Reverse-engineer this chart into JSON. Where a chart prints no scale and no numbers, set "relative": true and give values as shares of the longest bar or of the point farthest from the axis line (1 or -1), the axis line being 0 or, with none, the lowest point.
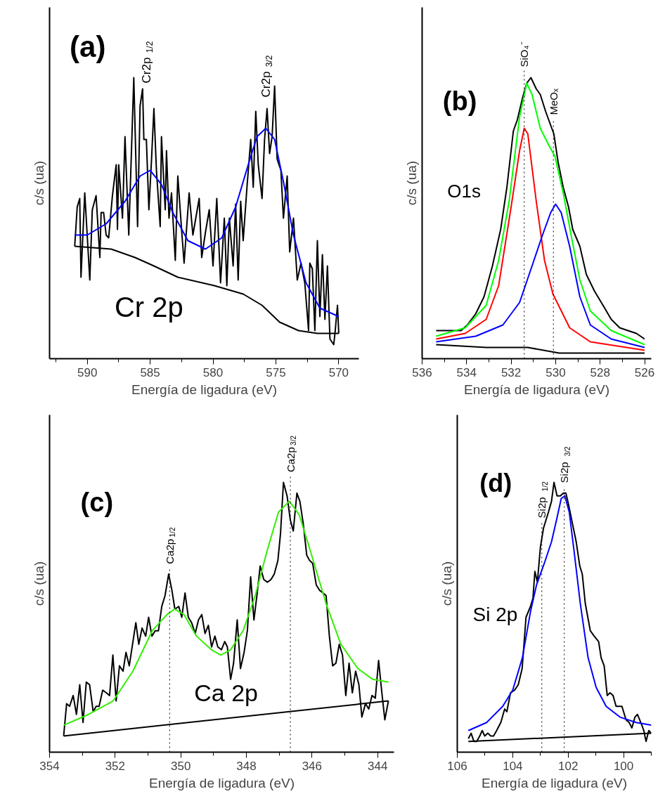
{
  "chart_data": [
    {
      "type": "line",
      "xlabel": "Energía de ligadura (eV)",
      "ylabel": "c/s (ua)",
      "relative": true,
      "tick_labels": "x",
      "xlim": [
        593.0,
        568.4
      ],
      "xticks": [
        590,
        585,
        580,
        575,
        570,
        {
          "value": 592.5,
          "label": null
        },
        {
          "value": 587.5,
          "label": null
        },
        {
          "value": 582.5,
          "label": null
        },
        {
          "value": 577.5,
          "label": null
        },
        {
          "value": 572.5,
          "label": null
        }
      ],
      "annotations": [
        "(a)",
        "Cr 2p",
        "Cr2p$_{1/2}$",
        "Cr2p$_{3/2}$"
      ],
      "series": [
        {
          "color": "#000000",
          "x": [
            591.0,
            590.8,
            590.6,
            590.5,
            590.2,
            589.8,
            589.6,
            589.3,
            589.0,
            588.9,
            588.7,
            588.5,
            588.3,
            588.0,
            587.7,
            587.6,
            587.5,
            587.2,
            587.0,
            586.7,
            586.5,
            586.3,
            586.0,
            585.8,
            585.6,
            585.5,
            585.3,
            585.1,
            584.9,
            584.7,
            584.5,
            584.2,
            584.1,
            583.8,
            583.7,
            583.5,
            583.3,
            583.0,
            582.8,
            582.5,
            582.3,
            581.9,
            581.6,
            581.1,
            580.9,
            580.6,
            580.3,
            580.0,
            579.7,
            579.4,
            579.1,
            578.9,
            578.7,
            578.4,
            578.2,
            578.0,
            577.8,
            577.6,
            577.3,
            577.0,
            576.8,
            576.6,
            576.4,
            576.1,
            575.9,
            575.7,
            575.5,
            575.3,
            575.1,
            574.9,
            574.6,
            574.4,
            574.1,
            573.9,
            573.6,
            573.3,
            573.0,
            572.7,
            572.4,
            572.3,
            572.1,
            571.9,
            571.7,
            571.5,
            571.3,
            571.1,
            570.9,
            570.7,
            570.4,
            570.3,
            570.1,
            570.0
          ],
          "values": [
            0.4,
            0.54,
            0.57,
            0.29,
            0.59,
            0.28,
            0.53,
            0.58,
            0.36,
            0.52,
            0.52,
            0.44,
            0.43,
            0.58,
            0.69,
            0.46,
            0.69,
            0.5,
            0.79,
            0.44,
            0.72,
            1.0,
            0.47,
            0.9,
            0.96,
            0.78,
            0.78,
            0.53,
            0.7,
            0.89,
            0.67,
            0.47,
            0.79,
            0.53,
            0.74,
            0.5,
            0.59,
            0.35,
            0.65,
            0.46,
            0.34,
            0.59,
            0.44,
            0.57,
            0.36,
            0.45,
            0.53,
            0.33,
            0.57,
            0.27,
            0.5,
            0.26,
            0.5,
            0.33,
            0.55,
            0.28,
            0.56,
            0.42,
            0.61,
            0.78,
            0.61,
            0.88,
            0.69,
            0.57,
            0.78,
            0.89,
            0.73,
            0.79,
            0.97,
            0.71,
            0.67,
            0.5,
            0.65,
            0.38,
            0.5,
            0.28,
            0.34,
            0.27,
            0.1,
            0.34,
            0.32,
            0.1,
            0.42,
            0.15,
            0.37,
            0.14,
            0.33,
            0.07,
            0.05,
            0.09,
            0.19,
            0.09
          ]
        },
        {
          "color": "#0000ff",
          "x": [
            591.0,
            590.0,
            588.5,
            587.0,
            585.8,
            585.0,
            584.1,
            583.2,
            582.0,
            580.6,
            579.3,
            578.2,
            577.2,
            576.5,
            575.8,
            575.1,
            574.4,
            573.6,
            572.6,
            571.5,
            570.0
          ],
          "values": [
            0.44,
            0.44,
            0.48,
            0.56,
            0.65,
            0.67,
            0.62,
            0.52,
            0.42,
            0.39,
            0.43,
            0.54,
            0.69,
            0.79,
            0.82,
            0.78,
            0.63,
            0.44,
            0.27,
            0.18,
            0.15
          ]
        },
        {
          "color": "#000000",
          "x": [
            591.0,
            588.1,
            586.2,
            584.7,
            582.8,
            579.9,
            577.6,
            576.1,
            574.7,
            573.2,
            571.7,
            570.0
          ],
          "values": [
            0.4,
            0.39,
            0.36,
            0.33,
            0.29,
            0.26,
            0.23,
            0.19,
            0.13,
            0.1,
            0.09,
            0.09
          ]
        }
      ]
    },
    {
      "type": "line",
      "xlabel": "Energía de ligadura (eV)",
      "ylabel": "c/s (ua)",
      "relative": true,
      "tick_labels": "x",
      "xlim": [
        536,
        525.7
      ],
      "xticks": [
        536,
        534,
        532,
        530,
        528,
        526,
        {
          "value": 535,
          "label": null
        },
        {
          "value": 533,
          "label": null
        },
        {
          "value": 531,
          "label": null
        },
        {
          "value": 529,
          "label": null
        },
        {
          "value": 527,
          "label": null
        }
      ],
      "annotations": [
        "(b)",
        "O1s"
      ],
      "ref_lines": [
        {
          "axis": "x",
          "value": 531.41,
          "label": "SiO₄⁻",
          "line_style": "dotted"
        },
        {
          "axis": "x",
          "value": 530.1,
          "label": "MeOₓ",
          "line_style": "dotted"
        }
      ],
      "series": [
        {
          "color": "#000000",
          "x": [
            535.37,
            535.0,
            534.62,
            534.25,
            533.97,
            533.59,
            533.22,
            532.84,
            532.47,
            532.19,
            531.9,
            531.72,
            531.48,
            531.3,
            531.11,
            530.87,
            530.69,
            530.45,
            530.22,
            530.08,
            529.89,
            529.66,
            529.42,
            529.23,
            528.91,
            528.62,
            528.25,
            527.87,
            527.5,
            527.12,
            526.75,
            526.37,
            526.0
          ],
          "values": [
            0.1,
            0.1,
            0.1,
            0.1,
            0.12,
            0.16,
            0.22,
            0.33,
            0.46,
            0.61,
            0.81,
            0.85,
            0.93,
            0.98,
            1.0,
            0.96,
            0.94,
            0.88,
            0.83,
            0.8,
            0.7,
            0.61,
            0.54,
            0.46,
            0.4,
            0.3,
            0.24,
            0.19,
            0.14,
            0.11,
            0.1,
            0.09,
            0.07
          ]
        },
        {
          "color": "#00ff00",
          "x": [
            535.37,
            534.06,
            533.12,
            532.56,
            532.09,
            531.62,
            531.3,
            531.06,
            530.69,
            530.31,
            530.03,
            529.66,
            529.28,
            528.91,
            528.44,
            527.5,
            526.0
          ],
          "values": [
            0.08,
            0.11,
            0.19,
            0.35,
            0.56,
            0.86,
            0.98,
            0.94,
            0.82,
            0.76,
            0.72,
            0.59,
            0.43,
            0.28,
            0.17,
            0.1,
            0.05
          ]
        },
        {
          "color": "#ff0000",
          "x": [
            535.37,
            534.06,
            533.12,
            532.56,
            532.0,
            531.62,
            531.41,
            531.25,
            530.87,
            530.5,
            530.12,
            529.37,
            528.44,
            526.0
          ],
          "values": [
            0.07,
            0.09,
            0.14,
            0.26,
            0.54,
            0.74,
            0.82,
            0.8,
            0.56,
            0.35,
            0.23,
            0.11,
            0.06,
            0.03
          ]
        },
        {
          "color": "#0000ff",
          "x": [
            535.37,
            533.59,
            532.37,
            531.62,
            531.06,
            530.59,
            530.22,
            530.0,
            529.75,
            529.37,
            528.91,
            528.44,
            527.5,
            526.0
          ],
          "values": [
            0.06,
            0.08,
            0.12,
            0.2,
            0.33,
            0.44,
            0.52,
            0.55,
            0.52,
            0.4,
            0.22,
            0.12,
            0.07,
            0.04
          ]
        },
        {
          "color": "#000000",
          "x": [
            535.37,
            533.12,
            531.25,
            529.84,
            528.44,
            526.0
          ],
          "values": [
            0.05,
            0.04,
            0.04,
            0.02,
            0.02,
            0.02
          ]
        }
      ]
    },
    {
      "type": "line",
      "xlabel": "Energía de ligadura (eV)",
      "ylabel": "c/s (ua)",
      "relative": true,
      "tick_labels": "x",
      "xlim": [
        354,
        343.5
      ],
      "xticks": [
        354,
        352,
        350,
        348,
        346,
        344,
        {
          "value": 353,
          "label": null
        },
        {
          "value": 351,
          "label": null
        },
        {
          "value": 349,
          "label": null
        },
        {
          "value": 347,
          "label": null
        },
        {
          "value": 345,
          "label": null
        }
      ],
      "annotations": [
        "(c)",
        "Ca 2p"
      ],
      "ref_lines": [
        {
          "axis": "x",
          "value": 350.34,
          "label": "Ca2p$_{1/2}$",
          "line_style": "dotted"
        },
        {
          "axis": "x",
          "value": 346.66,
          "label": "Ca2p$_{3/2}$",
          "line_style": "dotted"
        }
      ],
      "series": [
        {
          "color": "#000000",
          "x": [
            353.57,
            353.48,
            353.39,
            353.28,
            353.18,
            353.08,
            352.98,
            352.88,
            352.78,
            352.67,
            352.58,
            352.49,
            352.38,
            352.27,
            352.17,
            352.07,
            351.97,
            351.87,
            351.76,
            351.67,
            351.57,
            351.37,
            351.28,
            351.18,
            351.07,
            350.98,
            350.88,
            350.78,
            350.68,
            350.58,
            350.48,
            350.37,
            350.27,
            350.18,
            350.06,
            349.97,
            349.87,
            349.77,
            349.67,
            349.56,
            349.46,
            349.36,
            349.26,
            349.16,
            349.06,
            348.96,
            348.87,
            348.76,
            348.66,
            348.58,
            348.48,
            348.39,
            348.28,
            348.18,
            348.07,
            347.97,
            347.87,
            347.77,
            347.67,
            347.58,
            347.47,
            347.36,
            347.25,
            347.15,
            347.04,
            346.96,
            346.87,
            346.76,
            346.66,
            346.57,
            346.46,
            346.37,
            346.27,
            346.16,
            346.07,
            345.98,
            345.87,
            345.77,
            345.66,
            345.57,
            345.47,
            345.37,
            345.27,
            345.17,
            345.07,
            344.97,
            344.87,
            344.77,
            344.67,
            344.57,
            344.48,
            344.37,
            344.27,
            344.17,
            344.07,
            343.97,
            343.87,
            343.78,
            343.67
          ],
          "values": [
            0.06,
            0.18,
            0.17,
            0.21,
            0.14,
            0.25,
            0.11,
            0.26,
            0.25,
            0.15,
            0.17,
            0.17,
            0.23,
            0.22,
            0.21,
            0.36,
            0.19,
            0.32,
            0.3,
            0.37,
            0.32,
            0.48,
            0.4,
            0.46,
            0.43,
            0.5,
            0.43,
            0.45,
            0.45,
            0.54,
            0.58,
            0.66,
            0.6,
            0.53,
            0.54,
            0.5,
            0.59,
            0.5,
            0.48,
            0.44,
            0.49,
            0.51,
            0.44,
            0.47,
            0.39,
            0.43,
            0.39,
            0.38,
            0.41,
            0.39,
            0.27,
            0.33,
            0.49,
            0.31,
            0.37,
            0.45,
            0.65,
            0.49,
            0.59,
            0.69,
            0.64,
            0.63,
            0.64,
            0.66,
            0.71,
            0.81,
            1.0,
            0.95,
            0.86,
            0.82,
            0.96,
            0.93,
            0.85,
            0.73,
            0.71,
            0.7,
            0.62,
            0.6,
            0.59,
            0.58,
            0.43,
            0.32,
            0.33,
            0.4,
            0.36,
            0.21,
            0.33,
            0.22,
            0.3,
            0.25,
            0.13,
            0.18,
            0.16,
            0.21,
            0.2,
            0.34,
            0.22,
            0.12,
            0.19
          ]
        },
        {
          "color": "#33ee00",
          "x": [
            353.57,
            352.81,
            352.06,
            351.46,
            350.87,
            350.42,
            350.19,
            349.9,
            349.52,
            349.07,
            348.78,
            348.48,
            348.1,
            347.73,
            347.36,
            347.02,
            346.69,
            346.39,
            346.01,
            345.57,
            345.12,
            344.6,
            344.15,
            343.67
          ],
          "values": [
            0.1,
            0.14,
            0.19,
            0.3,
            0.45,
            0.51,
            0.53,
            0.51,
            0.43,
            0.38,
            0.36,
            0.38,
            0.45,
            0.58,
            0.75,
            0.89,
            0.93,
            0.88,
            0.73,
            0.55,
            0.4,
            0.31,
            0.27,
            0.26
          ]
        },
        {
          "color": "#000000",
          "x": [
            353.57,
            343.67
          ],
          "values": [
            0.06,
            0.19
          ]
        }
      ]
    },
    {
      "type": "line",
      "xlabel": "Energía de ligadura (eV)",
      "ylabel": "c/s (ua)",
      "relative": true,
      "tick_labels": "x",
      "xlim": [
        106,
        99.0
      ],
      "xticks": [
        106,
        104,
        102,
        100,
        {
          "value": 105,
          "label": null
        },
        {
          "value": 103,
          "label": null
        },
        {
          "value": 101,
          "label": null
        },
        {
          "value": 99,
          "label": null
        }
      ],
      "annotations": [
        "(d)",
        "Si 2p"
      ],
      "ref_lines": [
        {
          "axis": "x",
          "value": 102.95,
          "label": "Si2p$_{1/2}$",
          "line_style": "dotted"
        },
        {
          "axis": "x",
          "value": 102.14,
          "label": "Si2p$_{3/2}$",
          "line_style": "dotted"
        }
      ],
      "series": [
        {
          "color": "#000000",
          "x": [
            105.6,
            105.5,
            105.4,
            105.3,
            105.19,
            105.1,
            105.01,
            104.9,
            104.79,
            104.69,
            104.58,
            104.43,
            104.29,
            104.21,
            104.08,
            103.93,
            103.8,
            103.66,
            103.52,
            103.36,
            103.27,
            103.2,
            103.11,
            103.0,
            102.89,
            102.71,
            102.6,
            102.51,
            102.4,
            102.28,
            102.17,
            102.08,
            101.99,
            101.85,
            101.71,
            101.58,
            101.49,
            101.38,
            101.2,
            101.06,
            100.9,
            100.81,
            100.7,
            100.59,
            100.49,
            100.38,
            100.27,
            100.06,
            99.91,
            99.8,
            99.7,
            99.59,
            99.5,
            99.34,
            99.27,
            99.19,
            99.09,
            99.0
          ],
          "values": [
            0.05,
            0.07,
            0.04,
            0.04,
            0.06,
            0.08,
            0.06,
            0.07,
            0.06,
            0.06,
            0.08,
            0.11,
            0.16,
            0.15,
            0.22,
            0.23,
            0.25,
            0.31,
            0.5,
            0.54,
            0.57,
            0.67,
            0.63,
            0.76,
            0.83,
            0.89,
            0.93,
            1.0,
            0.95,
            0.95,
            0.96,
            0.96,
            0.92,
            0.85,
            0.78,
            0.69,
            0.66,
            0.55,
            0.45,
            0.43,
            0.41,
            0.35,
            0.32,
            0.21,
            0.22,
            0.21,
            0.17,
            0.17,
            0.12,
            0.11,
            0.09,
            0.13,
            0.14,
            0.1,
            0.08,
            0.04,
            0.08,
            0.07
          ]
        },
        {
          "color": "#0000ff",
          "x": [
            105.6,
            104.94,
            104.36,
            104.0,
            103.65,
            103.36,
            103.14,
            102.86,
            102.6,
            102.42,
            102.25,
            102.12,
            101.96,
            101.78,
            101.56,
            101.28,
            100.99,
            100.63,
            100.13,
            99.55,
            99.0
          ],
          "values": [
            0.08,
            0.11,
            0.17,
            0.23,
            0.35,
            0.52,
            0.62,
            0.7,
            0.78,
            0.86,
            0.94,
            0.95,
            0.89,
            0.74,
            0.55,
            0.35,
            0.24,
            0.17,
            0.13,
            0.11,
            0.1
          ]
        },
        {
          "color": "#000000",
          "x": [
            105.6,
            99.0
          ],
          "values": [
            0.04,
            0.07
          ]
        }
      ]
    }
  ]
}
